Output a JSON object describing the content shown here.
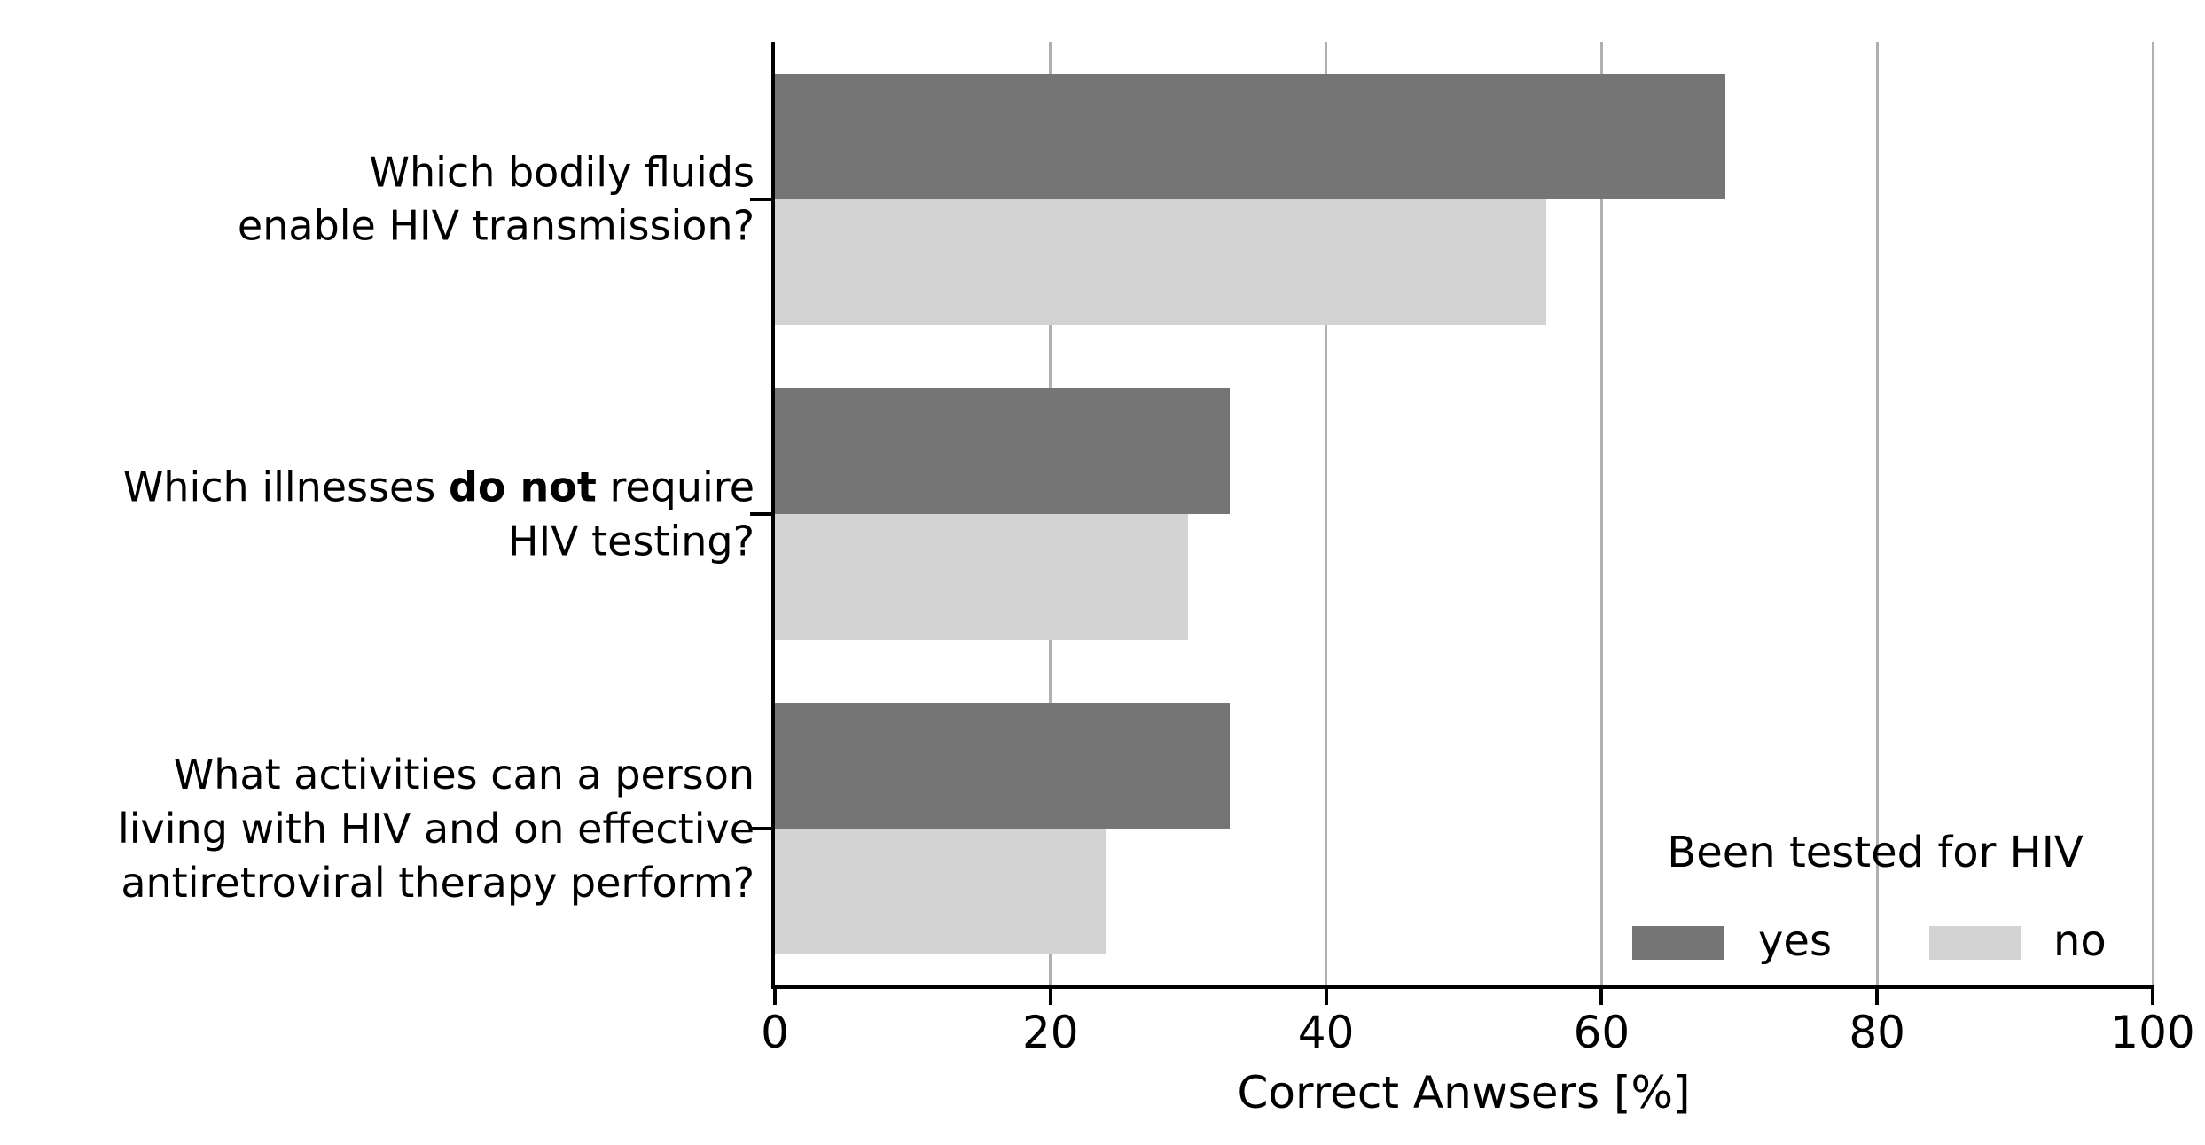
{
  "chart_data": {
    "type": "bar",
    "orientation": "horizontal",
    "title": "",
    "xlabel": "Correct Anwsers [%]",
    "ylabel": "",
    "xlim": [
      0,
      100
    ],
    "xticks": [
      0,
      20,
      40,
      60,
      80,
      100
    ],
    "grid": true,
    "axis_below": true,
    "categories": [
      {
        "id": "bodily-fluids",
        "lines": [
          [
            {
              "text": "Which bodily fluids",
              "bold": false
            }
          ],
          [
            {
              "text": "enable HIV transmission?",
              "bold": false
            }
          ]
        ]
      },
      {
        "id": "illnesses-testing",
        "lines": [
          [
            {
              "text": "Which illnesses ",
              "bold": false
            },
            {
              "text": "do not",
              "bold": true
            },
            {
              "text": " require",
              "bold": false
            }
          ],
          [
            {
              "text": "HIV testing?",
              "bold": false
            }
          ]
        ]
      },
      {
        "id": "activities-art",
        "lines": [
          [
            {
              "text": "What activities can a person",
              "bold": false
            }
          ],
          [
            {
              "text": "living with HIV and on effective",
              "bold": false
            }
          ],
          [
            {
              "text": "antiretroviral therapy perform?",
              "bold": false
            }
          ]
        ]
      }
    ],
    "series": [
      {
        "name": "yes",
        "color": "#757575",
        "values": [
          69,
          33,
          33
        ]
      },
      {
        "name": "no",
        "color": "#d3d3d3",
        "values": [
          56,
          30,
          24
        ]
      }
    ],
    "legend": {
      "title": "Been tested for HIV",
      "position": "lower right",
      "frame": false
    },
    "style": {
      "background": "#ffffff",
      "text_color": "#000000",
      "grid_color": "#b0b0b0",
      "spine_color": "#000000"
    }
  }
}
